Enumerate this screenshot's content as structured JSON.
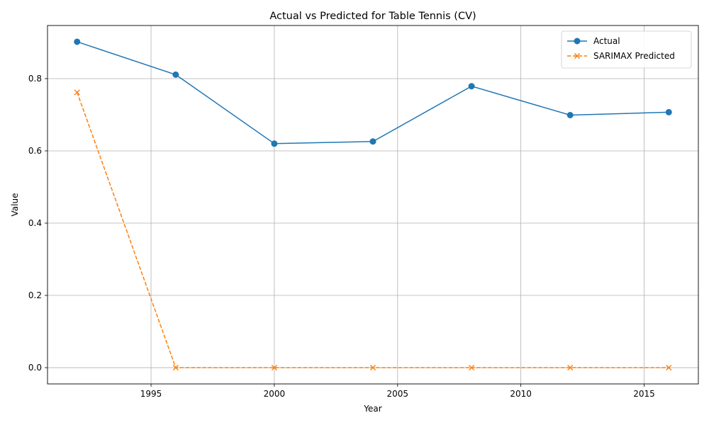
{
  "chart_data": {
    "type": "line",
    "title": "Actual vs Predicted for Table Tennis (CV)",
    "xlabel": "Year",
    "ylabel": "Value",
    "xlim": [
      1990.8,
      2017.2
    ],
    "ylim": [
      -0.045,
      0.947
    ],
    "x_ticks": [
      1995,
      2000,
      2005,
      2010,
      2015
    ],
    "y_ticks": [
      0.0,
      0.2,
      0.4,
      0.6,
      0.8
    ],
    "grid": true,
    "legend_position": "top-right",
    "x": [
      1992,
      1996,
      2000,
      2004,
      2008,
      2012,
      2016
    ],
    "series": [
      {
        "name": "Actual",
        "values": [
          0.902,
          0.811,
          0.62,
          0.626,
          0.779,
          0.699,
          0.707
        ],
        "color": "#1f77b4",
        "line_style": "solid",
        "marker": "circle"
      },
      {
        "name": "SARIMAX Predicted",
        "values": [
          0.762,
          0.0,
          0.0,
          0.0,
          0.0,
          0.0,
          0.0
        ],
        "color": "#ff7f0e",
        "line_style": "dashed",
        "marker": "x"
      }
    ]
  }
}
